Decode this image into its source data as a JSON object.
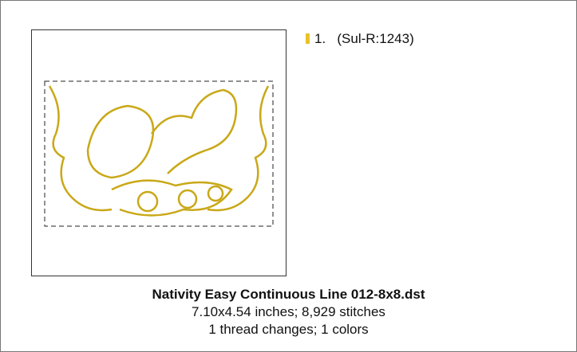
{
  "thread": {
    "number": "1.",
    "name": "(Sul-R:1243)"
  },
  "design": {
    "title": "Nativity Easy Continuous Line 012-8x8.dst",
    "size_line": "7.10x4.54 inches; 8,929 stitches",
    "colors_line": "1 thread changes; 1 colors"
  }
}
